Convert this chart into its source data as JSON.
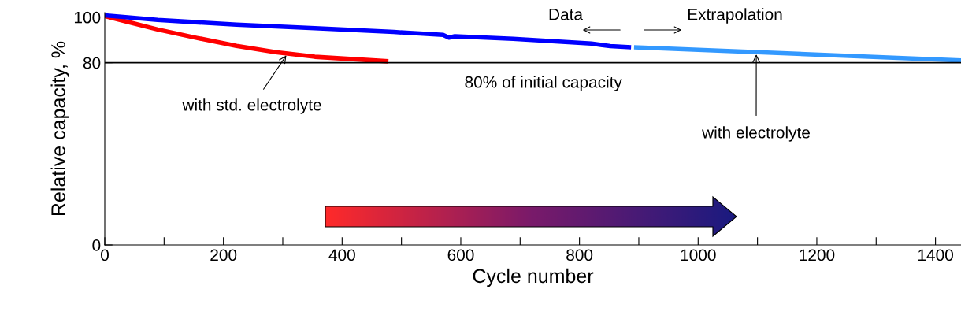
{
  "chart_data": {
    "type": "line",
    "xlabel": "Cycle number",
    "ylabel": "Relative capacity, %",
    "xlim": [
      0,
      1443
    ],
    "ylim": [
      0,
      102
    ],
    "yticks": [
      0,
      80,
      100
    ],
    "xticks": [
      0,
      {
        "value": 100,
        "label": null
      },
      200,
      {
        "value": 300,
        "label": null
      },
      400,
      {
        "value": 500,
        "label": null
      },
      600,
      {
        "value": 700,
        "label": null
      },
      800,
      {
        "value": 900,
        "label": null
      },
      1000,
      {
        "value": 1100,
        "label": null
      },
      1200,
      {
        "value": 1300,
        "label": null
      },
      1400
    ],
    "grid": false,
    "legend": false,
    "line_style": "solid",
    "marker": "none",
    "series": [
      {
        "color": "#ff0000",
        "x": [
          0,
          36,
          89,
          155,
          222,
          288,
          354,
          478
        ],
        "values": [
          100.5,
          98.1,
          94.6,
          90.9,
          87.4,
          84.6,
          82.6,
          80.6
        ]
      },
      {
        "color": "#0000ff",
        "x": [
          0,
          89,
          222,
          354,
          487,
          570,
          580,
          590,
          688,
          820,
          852,
          887
        ],
        "values": [
          100.8,
          98.8,
          96.7,
          95.2,
          93.5,
          92.2,
          91.0,
          91.6,
          90.5,
          88.4,
          87.3,
          86.8
        ]
      },
      {
        "color": "#3399ff",
        "x": [
          892,
          1443
        ],
        "values": [
          86.8,
          81.0
        ]
      }
    ],
    "ref_lines": [
      {
        "axis": "y",
        "value": 80,
        "label": "80% of initial capacity",
        "color": "#000000"
      }
    ],
    "annotations": [
      "Data",
      "Extrapolation",
      {
        "text": "with std. electrolyte",
        "x": 308,
        "y": 84.0
      },
      {
        "text": "with electrolyte",
        "x": 1098,
        "y": 84.6
      }
    ]
  }
}
